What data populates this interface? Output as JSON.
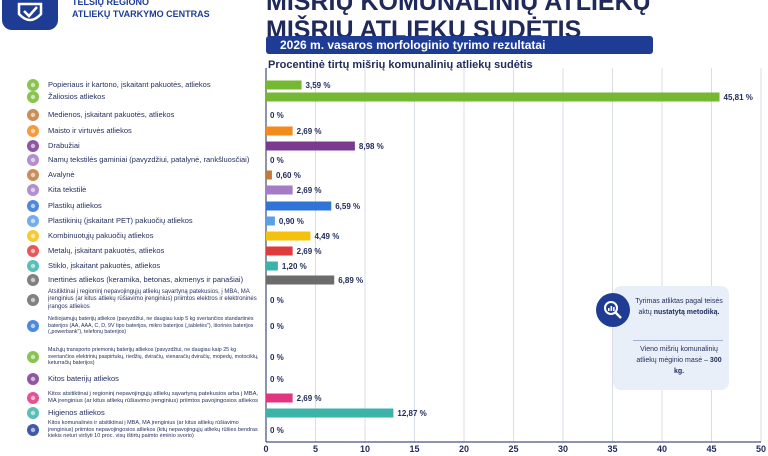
{
  "header": {
    "org_line1": "TELŠIŲ REGIONO",
    "org_line2": "ATLIEKŲ TVARKYMO CENTRAS",
    "title_line1": "MIŠRIŲ KOMUNALINIŲ ATLIEKŲ",
    "title_line2": "MIŠRIŲ ATLIEKŲ SUDĖTIS",
    "subtitle": "2026 m. vasaros morfologinio tyrimo rezultatai"
  },
  "info_box": {
    "text1_pre": "Tyrimas atliktas pagal teisės aktų",
    "text1_bold": "nustatytą metodiką.",
    "text2_pre": "Vieno mišrių komunalinių atliekų mėginio masė –",
    "text2_bold": "300 kg."
  },
  "colors": {
    "navy": "#1f3c95",
    "green": "#75b831",
    "orange": "#f28a1c",
    "brown": "#c07a3c",
    "purple": "#7b3a8f",
    "lilac": "#a57bc5",
    "blue": "#2f74d6",
    "lightblue": "#5aa0e8",
    "yellow": "#f4c20d",
    "red": "#e03b3b",
    "teal": "#3bb3a9",
    "gray": "#6b6b6b",
    "pink": "#e0357f",
    "grid": "#d9dde8"
  },
  "chart_data": {
    "type": "bar",
    "orientation": "horizontal",
    "title": "Procentinė tirtų mišrių komunalinių atliekų sudėtis",
    "xlim": [
      0,
      50
    ],
    "xticks": [
      0,
      5,
      10,
      15,
      20,
      25,
      30,
      35,
      40,
      45,
      50
    ],
    "grid": true,
    "categories": [
      {
        "label": "Popieriaus ir kartono, įskaitant pakuotės, atliekos",
        "value": 3.59,
        "value_label": "3,59 %",
        "color": "green",
        "icon": "leaf-icon"
      },
      {
        "label": "Žaliosios atliekos",
        "value": 45.81,
        "value_label": "45,81 %",
        "color": "green",
        "icon": "leaf-icon"
      },
      {
        "label": "Medienos, įskaitant pakuotės, atliekos",
        "value": 0,
        "value_label": "0 %",
        "color": "brown",
        "icon": "wood-icon"
      },
      {
        "label": "Maisto ir virtuvės atliekos",
        "value": 2.69,
        "value_label": "2,69 %",
        "color": "orange",
        "icon": "food-icon"
      },
      {
        "label": "Drabužiai",
        "value": 8.98,
        "value_label": "8,98 %",
        "color": "purple",
        "icon": "shirt-icon"
      },
      {
        "label": "Namų tekstilės gaminiai (pavyzdžiui, patalynė, rankšluosčiai)",
        "value": 0,
        "value_label": "0 %",
        "color": "lilac",
        "icon": "towel-icon"
      },
      {
        "label": "Avalynė",
        "value": 0.6,
        "value_label": "0,60 %",
        "color": "brown",
        "icon": "shoe-icon"
      },
      {
        "label": "Kita tekstilė",
        "value": 2.69,
        "value_label": "2,69 %",
        "color": "lilac",
        "icon": "yarn-icon"
      },
      {
        "label": "Plastikų atliekos",
        "value": 6.59,
        "value_label": "6,59 %",
        "color": "blue",
        "icon": "bottle-icon"
      },
      {
        "label": "Plastikinių (įskaitant PET) pakuočių atliekos",
        "value": 0.9,
        "value_label": "0,90 %",
        "color": "lightblue",
        "icon": "bottle-icon"
      },
      {
        "label": "Kombinuotųjų pakuočių atliekos",
        "value": 4.49,
        "value_label": "4,49 %",
        "color": "yellow",
        "icon": "carton-icon"
      },
      {
        "label": "Metalų, įskaitant pakuotės, atliekos",
        "value": 2.69,
        "value_label": "2,69 %",
        "color": "red",
        "icon": "can-icon"
      },
      {
        "label": "Stiklo, įskaitant pakuotės, atliekos",
        "value": 1.2,
        "value_label": "1,20 %",
        "color": "teal",
        "icon": "glass-bottle-icon"
      },
      {
        "label": "Inertinės atliekos (keramika, betonas, akmenys ir panašiai)",
        "value": 6.89,
        "value_label": "6,89 %",
        "color": "gray",
        "icon": "rocks-icon"
      },
      {
        "label": "Atsitiktinai į regioninį nepavojingųjų atliekų sąvartyną patekusios, į MBA, MA įrenginius (ar kitus atliekų rūšiavimo įrenginius) priimtos elektros ir elektroninės įrangos atliekos",
        "value": 0,
        "value_label": "0 %",
        "color": "gray",
        "icon": "monitor-icon"
      },
      {
        "label": "Nešiojamųjų baterijų atliekos (pavyzdžiui, ne daugiau kaip 5 kg sveriančios standartinės baterijos (AA, AAA, C, D, 9V tipo baterijos, mikro baterijos („tabletės\"), išorinės baterijos („powerbank\"), telefonų baterijos)",
        "value": 0,
        "value_label": "0 %",
        "color": "blue",
        "icon": "battery-icon"
      },
      {
        "label": "Mažųjų transporto priemonių baterijų atliekos (pavyzdžiui, ne daugiau kaip 25 kg sveriančios elektrinių paspirtukų, riedžių, dviračių, vienaračių dviračių, mopedų, motociklų, keturračių baterijos)",
        "value": 0,
        "value_label": "0 %",
        "color": "green",
        "icon": "bicycle-icon"
      },
      {
        "label": "Kitos baterijų atliekos",
        "value": 0,
        "value_label": "0 %",
        "color": "purple",
        "icon": "battery-icon"
      },
      {
        "label": "Kitos atsitiktinai į regioninį nepavojingųjų atliekų sąvartyną patekusios arba į MBA, MA įrenginius (ar kitus atliekų rūšiavimo įrenginius) priimtos pavojingosios atliekos",
        "value": 2.69,
        "value_label": "2,69 %",
        "color": "pink",
        "icon": "warning-icon"
      },
      {
        "label": "Higienos atliekos",
        "value": 12.87,
        "value_label": "12,87 %",
        "color": "teal",
        "icon": "diaper-icon"
      },
      {
        "label": "Kitos komunalinės ir atsitiktinai į MBA, MA įrenginius (ar kitus atliekų rūšiavimo įrenginius) priimtos nepavojingosios atliekos (kitų nepavojingųjų atliekų rūšies bendras kiekis neturi viršyti 10 proc. visų ištirtų paimto ėminio svorio)",
        "value": 0,
        "value_label": "0 %",
        "color": "navy",
        "icon": "bin-icon"
      }
    ]
  }
}
